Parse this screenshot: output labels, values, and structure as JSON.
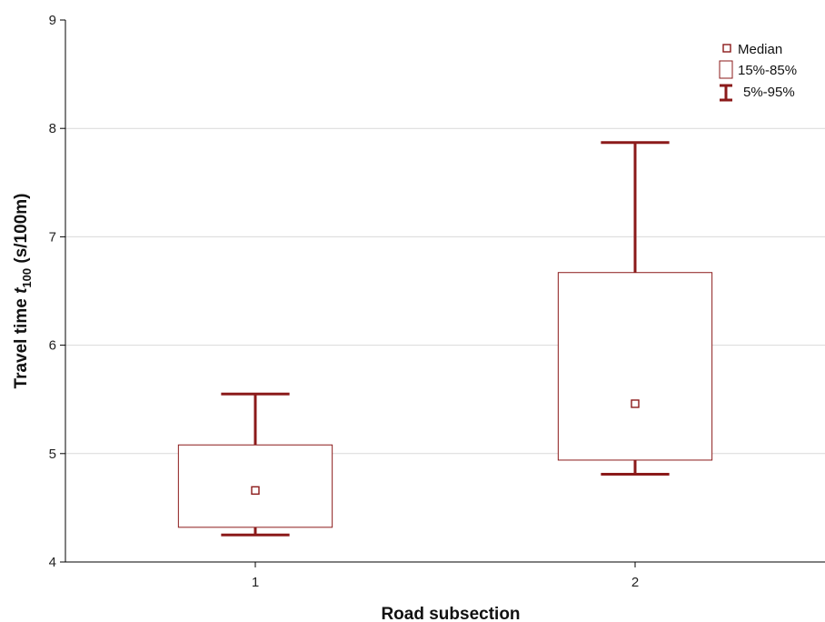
{
  "chart_data": {
    "type": "box",
    "xlabel": "Road subsection",
    "ylabel_main": "Travel time ",
    "ylabel_var": "t",
    "ylabel_sub": "100",
    "ylabel_unit": " (s/100m)",
    "ylim": [
      4,
      9
    ],
    "yticks": [
      "4",
      "5",
      "6",
      "7",
      "8",
      "9"
    ],
    "grid": true,
    "legend_position": "top-right",
    "categories": [
      "1",
      "2"
    ],
    "boxes": [
      {
        "category": "1",
        "median": 4.66,
        "q15": 4.32,
        "q85": 5.08,
        "p5": 4.25,
        "p95": 5.55
      },
      {
        "category": "2",
        "median": 5.46,
        "q15": 4.94,
        "q85": 6.67,
        "p5": 4.81,
        "p95": 7.87
      }
    ],
    "legend": {
      "median": "Median",
      "box": "15%-85%",
      "whisker": "5%-95%"
    },
    "colors": {
      "series": "#8b1a1a",
      "grid": "#d9d9d9",
      "axis": "#000000"
    }
  }
}
